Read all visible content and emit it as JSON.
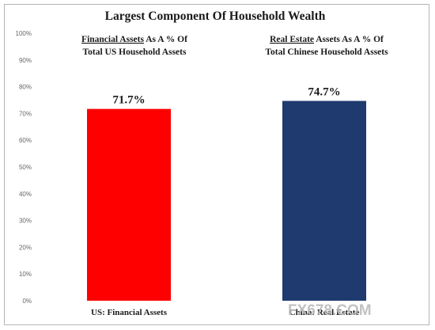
{
  "chart_data": {
    "type": "bar",
    "title": "Largest Component Of Household Wealth",
    "categories": [
      "US: Financial Assets",
      "China: Real Estate"
    ],
    "series": [
      {
        "values": [
          71.7,
          74.7
        ]
      }
    ],
    "data_labels": [
      "71.7%",
      "74.7%"
    ],
    "bar_colors": [
      "#ff0000",
      "#1f3a6e"
    ],
    "ylim": [
      0,
      100
    ],
    "yticks": [
      0,
      10,
      20,
      30,
      40,
      50,
      60,
      70,
      80,
      90,
      100
    ],
    "ytick_labels": [
      "0%",
      "10%",
      "20%",
      "30%",
      "40%",
      "50%",
      "60%",
      "70%",
      "80%",
      "90%",
      "100%"
    ],
    "grid": false,
    "annotations": [
      {
        "underlined": "Financial Assets",
        "rest": " As A % Of",
        "line2": "Total US Household Assets"
      },
      {
        "underlined": "Real Estate",
        "rest": " Assets As A % Of",
        "line2": "Total Chinese Household Assets"
      }
    ]
  },
  "watermark": "FX678.COM"
}
